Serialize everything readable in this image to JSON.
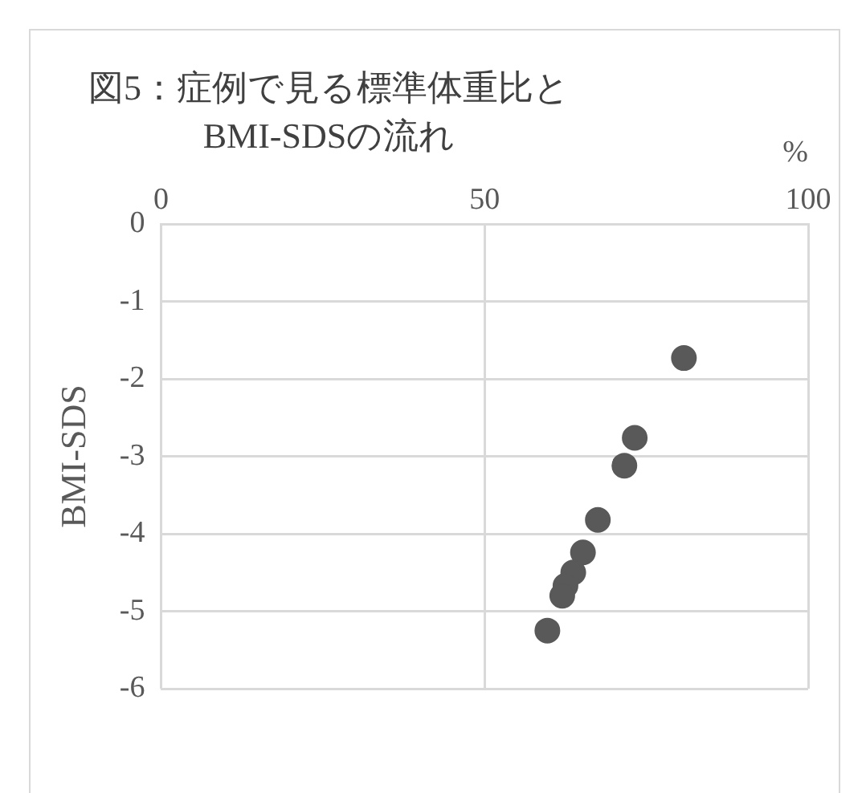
{
  "chart_data": {
    "type": "scatter",
    "title": "図5：症例で見る標準体重比と BMI-SDSの流れ",
    "xlabel": "%",
    "ylabel": "BMI-SDS",
    "x": [
      80.8,
      73.2,
      71.6,
      67.5,
      65.2,
      63.7,
      62.5,
      62.0,
      59.7
    ],
    "series": [
      {
        "color": "#595959",
        "values": [
          -1.73,
          -2.76,
          -3.12,
          -3.82,
          -4.24,
          -4.5,
          -4.67,
          -4.8,
          -5.25
        ]
      }
    ],
    "xlim": [
      0,
      100
    ],
    "xticks": [
      0,
      50,
      100
    ],
    "ylim": [
      -6,
      0
    ],
    "yticks": [
      0,
      -1,
      -2,
      -3,
      -4,
      -5,
      -6
    ],
    "grid": true,
    "marker": "circle",
    "legend": false
  }
}
